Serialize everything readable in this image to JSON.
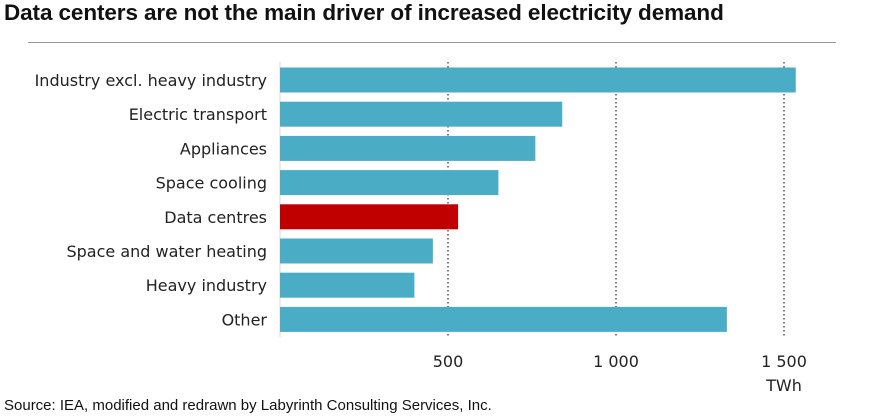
{
  "chart_data": {
    "type": "bar",
    "orientation": "horizontal",
    "title": "Data centers are not the main driver of increased electricity demand",
    "categories": [
      "Industry excl. heavy industry",
      "Electric transport",
      "Appliances",
      "Space cooling",
      "Data centres",
      "Space and water heating",
      "Heavy industry",
      "Other"
    ],
    "values": [
      1535,
      840,
      760,
      650,
      530,
      455,
      400,
      1330
    ],
    "highlight_category": "Data centres",
    "xlabel": "TWh",
    "ylabel": "",
    "xlim": [
      0,
      1600
    ],
    "xticks": [
      500,
      1000,
      1500
    ],
    "xtick_labels": [
      "500",
      "1 000",
      "1 500"
    ],
    "grid": "vertical dotted",
    "colors": {
      "bar": "#4bacc6",
      "highlight": "#c00000",
      "gridline": "#7f7f7f"
    }
  },
  "source": "Source: IEA, modified and redrawn by Labyrinth Consulting Services, Inc."
}
